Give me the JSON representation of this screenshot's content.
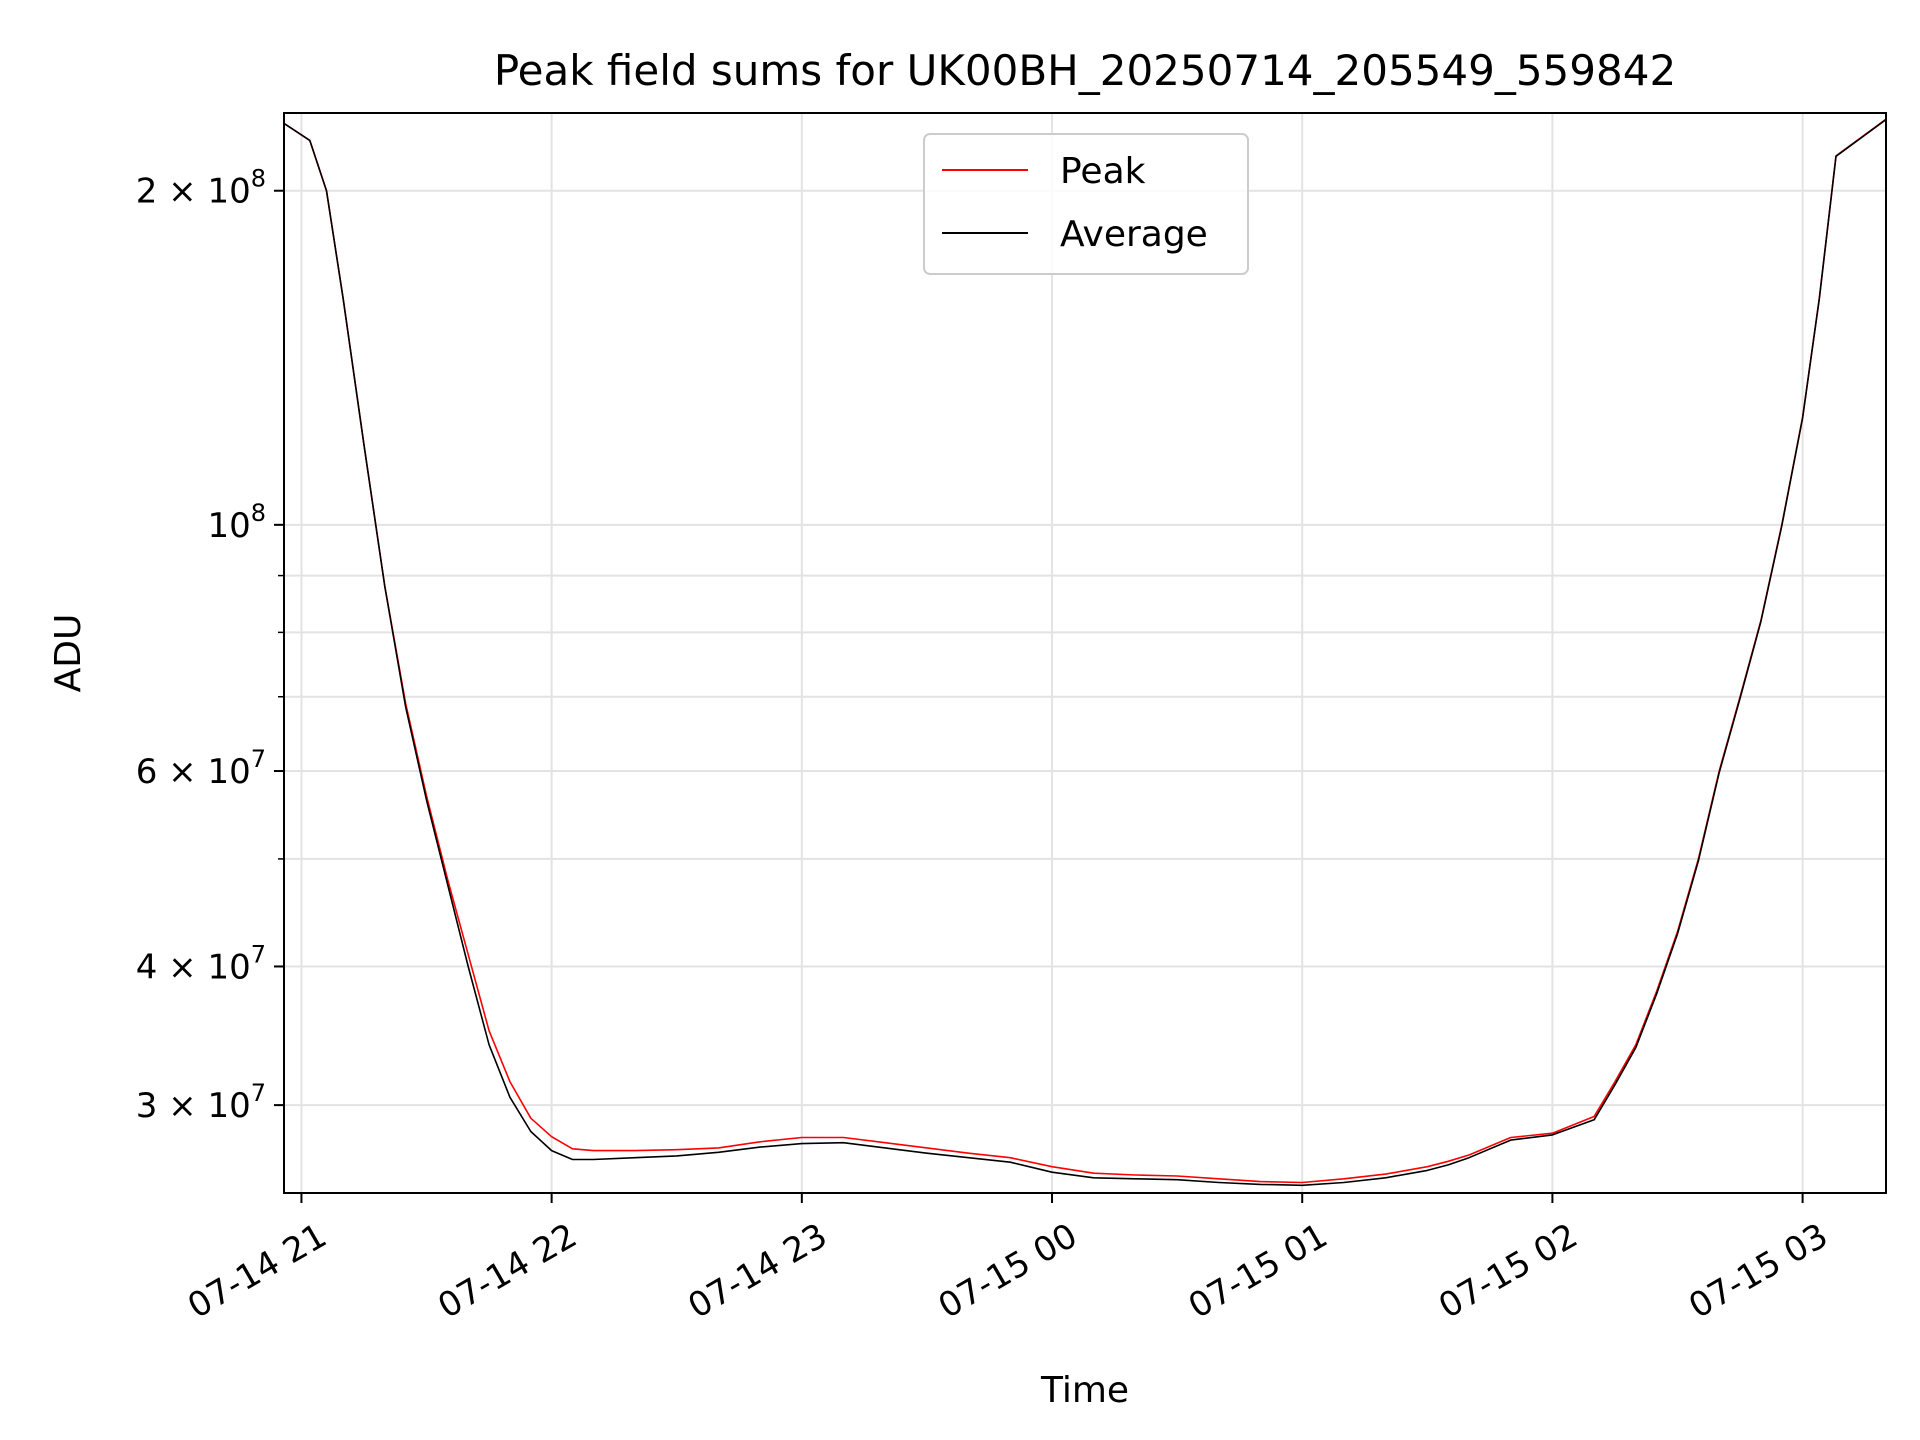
{
  "chart_data": {
    "type": "line",
    "title": "Peak field sums for UK00BH_20250714_205549_559842",
    "xlabel": "Time",
    "ylabel": "ADU",
    "yscale": "log",
    "grid": true,
    "legend_position": "top-center",
    "xlim": [
      "2025-07-14T20:55:49",
      "2025-07-15T03:20:00"
    ],
    "ylim": [
      25000000,
      235000000
    ],
    "x_ticks": [
      {
        "value": "2025-07-14T21:00:00",
        "label": "07-14 21"
      },
      {
        "value": "2025-07-14T22:00:00",
        "label": "07-14 22"
      },
      {
        "value": "2025-07-14T23:00:00",
        "label": "07-14 23"
      },
      {
        "value": "2025-07-15T00:00:00",
        "label": "07-15 00"
      },
      {
        "value": "2025-07-15T01:00:00",
        "label": "07-15 01"
      },
      {
        "value": "2025-07-15T02:00:00",
        "label": "07-15 02"
      },
      {
        "value": "2025-07-15T03:00:00",
        "label": "07-15 03"
      }
    ],
    "y_ticks": [
      {
        "value": 30000000,
        "base": "3 × 10",
        "exp": "7"
      },
      {
        "value": 40000000,
        "base": "4 × 10",
        "exp": "7"
      },
      {
        "value": 60000000,
        "base": "6 × 10",
        "exp": "7"
      },
      {
        "value": 100000000,
        "base": "10",
        "exp": "8"
      },
      {
        "value": 200000000,
        "base": "2 × 10",
        "exp": "8"
      }
    ],
    "series": [
      {
        "name": "Peak",
        "color": "#ff0000",
        "x": [
          "2025-07-14T20:55:49",
          "2025-07-14T21:02:00",
          "2025-07-14T21:06:00",
          "2025-07-14T21:10:00",
          "2025-07-14T21:15:00",
          "2025-07-14T21:20:00",
          "2025-07-14T21:25:00",
          "2025-07-14T21:30:00",
          "2025-07-14T21:35:00",
          "2025-07-14T21:40:00",
          "2025-07-14T21:45:00",
          "2025-07-14T21:50:00",
          "2025-07-14T21:55:00",
          "2025-07-14T22:00:00",
          "2025-07-14T22:05:00",
          "2025-07-14T22:10:00",
          "2025-07-14T22:20:00",
          "2025-07-14T22:30:00",
          "2025-07-14T22:40:00",
          "2025-07-14T22:50:00",
          "2025-07-14T23:00:00",
          "2025-07-14T23:10:00",
          "2025-07-14T23:20:00",
          "2025-07-14T23:30:00",
          "2025-07-14T23:40:00",
          "2025-07-14T23:50:00",
          "2025-07-15T00:00:00",
          "2025-07-15T00:10:00",
          "2025-07-15T00:20:00",
          "2025-07-15T00:30:00",
          "2025-07-15T00:40:00",
          "2025-07-15T00:50:00",
          "2025-07-15T01:00:00",
          "2025-07-15T01:10:00",
          "2025-07-15T01:20:00",
          "2025-07-15T01:30:00",
          "2025-07-15T01:35:00",
          "2025-07-15T01:40:00",
          "2025-07-15T01:50:00",
          "2025-07-15T02:00:00",
          "2025-07-15T02:10:00",
          "2025-07-15T02:15:00",
          "2025-07-15T02:20:00",
          "2025-07-15T02:25:00",
          "2025-07-15T02:30:00",
          "2025-07-15T02:35:00",
          "2025-07-15T02:40:00",
          "2025-07-15T02:45:00",
          "2025-07-15T02:50:00",
          "2025-07-15T02:55:00",
          "2025-07-15T03:00:00",
          "2025-07-15T03:04:00",
          "2025-07-15T03:08:00",
          "2025-07-15T03:20:00"
        ],
        "y": [
          230000000,
          222000000,
          200000000,
          160000000,
          118000000,
          88000000,
          69000000,
          57000000,
          48000000,
          41000000,
          35000000,
          31500000,
          29200000,
          28100000,
          27400000,
          27300000,
          27300000,
          27350000,
          27450000,
          27800000,
          28050000,
          28050000,
          27750000,
          27450000,
          27150000,
          26900000,
          26400000,
          26050000,
          25950000,
          25900000,
          25750000,
          25600000,
          25550000,
          25750000,
          26000000,
          26400000,
          26700000,
          27050000,
          28050000,
          28300000,
          29300000,
          31500000,
          34000000,
          38000000,
          43000000,
          50000000,
          60000000,
          70000000,
          82000000,
          100000000,
          125000000,
          160000000,
          215000000,
          232000000
        ]
      },
      {
        "name": "Average",
        "color": "#000000",
        "x": [
          "2025-07-14T20:55:49",
          "2025-07-14T21:02:00",
          "2025-07-14T21:06:00",
          "2025-07-14T21:10:00",
          "2025-07-14T21:15:00",
          "2025-07-14T21:20:00",
          "2025-07-14T21:25:00",
          "2025-07-14T21:30:00",
          "2025-07-14T21:35:00",
          "2025-07-14T21:40:00",
          "2025-07-14T21:45:00",
          "2025-07-14T21:50:00",
          "2025-07-14T21:55:00",
          "2025-07-14T22:00:00",
          "2025-07-14T22:05:00",
          "2025-07-14T22:10:00",
          "2025-07-14T22:20:00",
          "2025-07-14T22:30:00",
          "2025-07-14T22:40:00",
          "2025-07-14T22:50:00",
          "2025-07-14T23:00:00",
          "2025-07-14T23:10:00",
          "2025-07-14T23:20:00",
          "2025-07-14T23:30:00",
          "2025-07-14T23:40:00",
          "2025-07-14T23:50:00",
          "2025-07-15T00:00:00",
          "2025-07-15T00:10:00",
          "2025-07-15T00:20:00",
          "2025-07-15T00:30:00",
          "2025-07-15T00:40:00",
          "2025-07-15T00:50:00",
          "2025-07-15T01:00:00",
          "2025-07-15T01:10:00",
          "2025-07-15T01:20:00",
          "2025-07-15T01:30:00",
          "2025-07-15T01:35:00",
          "2025-07-15T01:40:00",
          "2025-07-15T01:50:00",
          "2025-07-15T02:00:00",
          "2025-07-15T02:10:00",
          "2025-07-15T02:15:00",
          "2025-07-15T02:20:00",
          "2025-07-15T02:25:00",
          "2025-07-15T02:30:00",
          "2025-07-15T02:35:00",
          "2025-07-15T02:40:00",
          "2025-07-15T02:45:00",
          "2025-07-15T02:50:00",
          "2025-07-15T02:55:00",
          "2025-07-15T03:00:00",
          "2025-07-15T03:04:00",
          "2025-07-15T03:08:00",
          "2025-07-15T03:20:00"
        ],
        "y": [
          230000000,
          222000000,
          200000000,
          160000000,
          118000000,
          88000000,
          68500000,
          56500000,
          47500000,
          40000000,
          34000000,
          30500000,
          28400000,
          27300000,
          26800000,
          26800000,
          26900000,
          27000000,
          27200000,
          27500000,
          27700000,
          27750000,
          27450000,
          27150000,
          26900000,
          26650000,
          26100000,
          25800000,
          25750000,
          25700000,
          25550000,
          25450000,
          25400000,
          25550000,
          25800000,
          26200000,
          26500000,
          26900000,
          27900000,
          28200000,
          29100000,
          31300000,
          33800000,
          37800000,
          42800000,
          49800000,
          59800000,
          69800000,
          81800000,
          99800000,
          124800000,
          159800000,
          214800000,
          231800000
        ]
      }
    ]
  }
}
